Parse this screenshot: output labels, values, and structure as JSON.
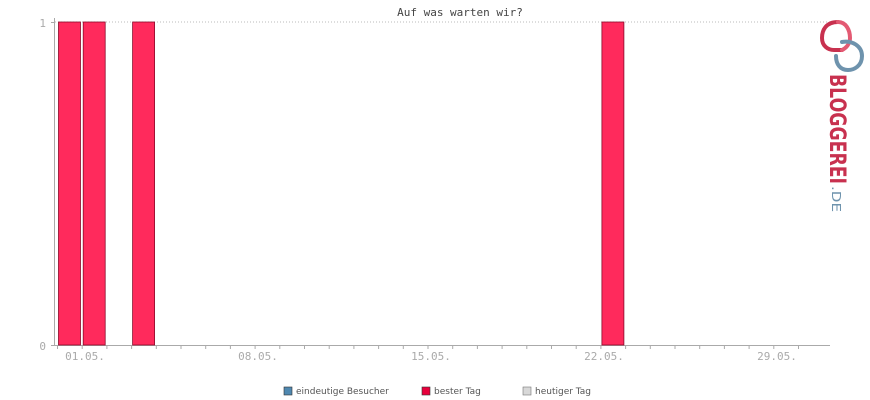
{
  "chart_data": {
    "type": "bar",
    "title": "Auf was warten wir?",
    "xlabel": "",
    "ylabel": "",
    "ylim": [
      0,
      1
    ],
    "y_ticks": [
      "0",
      "1"
    ],
    "x_tick_labels": [
      "01.05.",
      "08.05.",
      "15.05.",
      "22.05.",
      "29.05."
    ],
    "categories": [
      "01.05.",
      "02.05.",
      "03.05.",
      "04.05.",
      "05.05.",
      "06.05.",
      "07.05.",
      "08.05.",
      "09.05.",
      "10.05.",
      "11.05.",
      "12.05.",
      "13.05.",
      "14.05.",
      "15.05.",
      "16.05.",
      "17.05.",
      "18.05.",
      "19.05.",
      "20.05.",
      "21.05.",
      "22.05.",
      "23.05.",
      "24.05.",
      "25.05.",
      "26.05.",
      "27.05.",
      "28.05.",
      "29.05.",
      "30.05.",
      "31.05."
    ],
    "series": [
      {
        "name": "eindeutige Besucher",
        "color": "#4f88b0",
        "values": [
          0,
          0,
          0,
          0,
          0,
          0,
          0,
          0,
          0,
          0,
          0,
          0,
          0,
          0,
          0,
          0,
          0,
          0,
          0,
          0,
          0,
          0,
          0,
          0,
          0,
          0,
          0,
          0,
          0,
          0,
          0
        ]
      },
      {
        "name": "bester Tag",
        "color": "#ff2a5c",
        "values": [
          1,
          1,
          0,
          1,
          0,
          0,
          0,
          0,
          0,
          0,
          0,
          0,
          0,
          0,
          0,
          0,
          0,
          0,
          0,
          0,
          0,
          0,
          1,
          0,
          0,
          0,
          0,
          0,
          0,
          0,
          0
        ]
      },
      {
        "name": "heutiger Tag",
        "color": "#d8d8d8",
        "values": [
          0,
          0,
          0,
          0,
          0,
          0,
          0,
          0,
          0,
          0,
          0,
          0,
          0,
          0,
          0,
          0,
          0,
          0,
          0,
          0,
          0,
          0,
          0,
          0,
          0,
          0,
          0,
          0,
          0,
          0,
          0
        ]
      }
    ],
    "grid": "dotted top line",
    "legend_position": "bottom-center"
  },
  "logo": {
    "brand": "BLOGGEREI",
    "suffix": ".DE",
    "colors": {
      "primary": "#c8314f",
      "secondary": "#6e93ad"
    }
  },
  "colors": {
    "axis": "#aaaaaa",
    "bar_fill": "#ff2a5c",
    "bar_stroke": "#8a0a2a"
  }
}
